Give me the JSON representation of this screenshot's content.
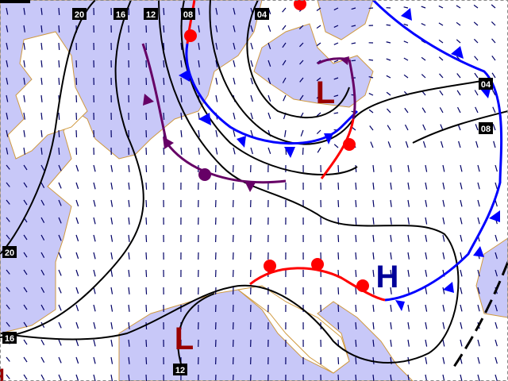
{
  "map": {
    "colors": {
      "sea": "#c8c8f8",
      "land": "#ffffff",
      "coast": "#d09a40",
      "wind": "#000066",
      "isobar": "#000000",
      "warm_front": "#ff0000",
      "cold_front": "#0000ff",
      "occluded_front": "#660066",
      "low": "#990000",
      "high": "#000099"
    },
    "isobar_labels": [
      "20",
      "16",
      "12",
      "08",
      "04",
      "04",
      "08",
      "20",
      "16",
      "12"
    ],
    "pressure_systems": [
      {
        "type": "low",
        "label": "L"
      },
      {
        "type": "low",
        "label": "L"
      },
      {
        "type": "high",
        "label": "H"
      },
      {
        "type": "low",
        "label": "L"
      }
    ]
  }
}
